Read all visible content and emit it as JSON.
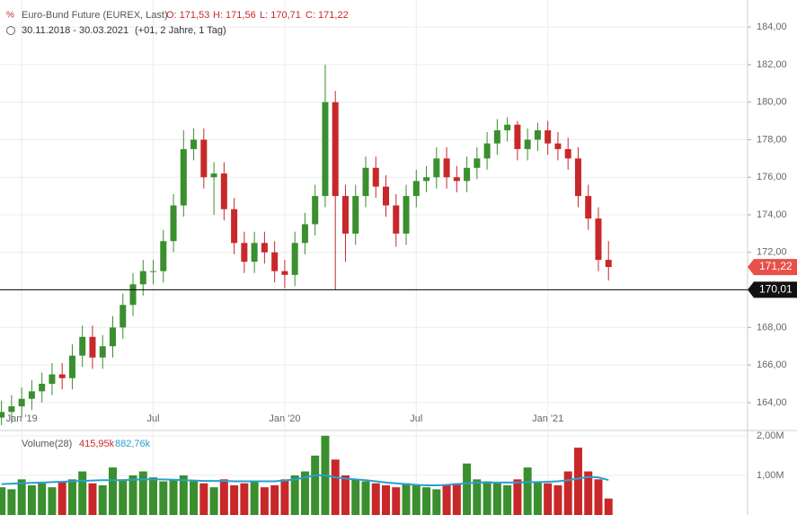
{
  "chart_data": [
    {
      "type": "candlestick",
      "title": "Euro-Bund Future (EUREX, Last)",
      "ohlc_labels": [
        "O: 171,53",
        "H: 171,56",
        "L: 170,71",
        "C: 171,22"
      ],
      "subtitle": "30.11.2018 - 30.03.2021",
      "period": "(+01, 2 Jahre, 1 Tag)",
      "categories": [
        null,
        null,
        "Jan '19",
        null,
        null,
        null,
        null,
        null,
        null,
        null,
        null,
        null,
        null,
        null,
        null,
        "Jul",
        null,
        null,
        null,
        null,
        null,
        null,
        null,
        null,
        null,
        null,
        null,
        null,
        "Jan '20",
        null,
        null,
        null,
        null,
        null,
        null,
        null,
        null,
        null,
        null,
        null,
        null,
        "Jul",
        null,
        null,
        null,
        null,
        null,
        null,
        null,
        null,
        null,
        null,
        null,
        null,
        "Jan '21",
        null,
        null,
        null,
        null,
        null,
        null
      ],
      "open": [
        163.2,
        163.5,
        163.8,
        164.2,
        164.6,
        165.0,
        165.5,
        165.3,
        166.5,
        167.5,
        166.4,
        167.0,
        168.0,
        169.2,
        170.3,
        171.0,
        171.0,
        172.6,
        174.5,
        177.5,
        178.0,
        176.0,
        176.2,
        174.3,
        172.5,
        171.5,
        172.5,
        172.0,
        171.0,
        170.8,
        172.5,
        173.5,
        175.0,
        180.0,
        175.0,
        173.0,
        175.0,
        176.5,
        175.5,
        174.5,
        173.0,
        175.0,
        175.8,
        176.0,
        177.0,
        176.0,
        175.8,
        176.5,
        177.0,
        177.8,
        178.5,
        178.8,
        177.5,
        178.0,
        178.5,
        177.8,
        177.5,
        177.0,
        175.0,
        173.8,
        171.6
      ],
      "high": [
        164.1,
        164.4,
        164.8,
        165.2,
        165.6,
        166.1,
        166.1,
        167.1,
        168.1,
        168.1,
        167.6,
        168.6,
        169.8,
        170.9,
        171.6,
        171.6,
        173.2,
        175.1,
        178.5,
        178.6,
        178.6,
        176.8,
        176.8,
        174.9,
        173.1,
        173.1,
        173.1,
        172.6,
        171.6,
        173.1,
        174.1,
        175.6,
        182.0,
        180.6,
        175.6,
        175.6,
        177.1,
        177.1,
        176.1,
        175.1,
        175.6,
        176.4,
        176.6,
        177.6,
        177.6,
        176.6,
        177.1,
        177.6,
        178.4,
        179.1,
        179.2,
        179.0,
        178.6,
        178.9,
        179.0,
        178.4,
        178.1,
        177.6,
        175.6,
        174.4,
        172.6
      ],
      "low": [
        162.8,
        162.9,
        163.2,
        163.6,
        164.0,
        164.4,
        164.7,
        164.7,
        165.9,
        165.8,
        165.8,
        166.4,
        167.4,
        168.6,
        169.7,
        170.3,
        170.4,
        172.0,
        173.9,
        176.9,
        175.4,
        174.0,
        173.7,
        171.9,
        170.9,
        170.9,
        171.4,
        170.4,
        170.1,
        170.2,
        171.9,
        172.9,
        174.4,
        170.0,
        171.5,
        172.4,
        174.4,
        174.9,
        173.9,
        172.3,
        172.4,
        174.4,
        175.2,
        175.4,
        175.4,
        175.2,
        175.2,
        175.9,
        176.4,
        177.2,
        177.9,
        176.9,
        176.9,
        177.4,
        177.2,
        176.9,
        176.4,
        174.4,
        173.2,
        171.0,
        170.5
      ],
      "close": [
        163.5,
        163.8,
        164.2,
        164.6,
        165.0,
        165.5,
        165.3,
        166.5,
        167.5,
        166.4,
        167.0,
        168.0,
        169.2,
        170.3,
        171.0,
        171.0,
        172.6,
        174.5,
        177.5,
        178.0,
        176.0,
        176.2,
        174.3,
        172.5,
        171.5,
        172.5,
        172.0,
        171.0,
        170.8,
        172.5,
        173.5,
        175.0,
        180.0,
        175.0,
        173.0,
        175.0,
        176.5,
        175.5,
        174.5,
        173.0,
        175.0,
        175.8,
        176.0,
        177.0,
        176.0,
        175.8,
        176.5,
        177.0,
        177.8,
        178.5,
        178.8,
        177.5,
        178.0,
        178.5,
        177.8,
        177.5,
        177.0,
        175.0,
        173.8,
        171.6,
        171.22
      ],
      "up_color": "#3a8f2e",
      "down_color": "#c8282a",
      "ylim": [
        162.56,
        185.2
      ],
      "yticks": [
        {
          "value": 164,
          "label": "164,00"
        },
        {
          "value": 166,
          "label": "166,00"
        },
        {
          "value": 168,
          "label": "168,00"
        },
        {
          "value": 170,
          "label": "170,00"
        },
        {
          "value": 172,
          "label": "172,00"
        },
        {
          "value": 174,
          "label": "174,00"
        },
        {
          "value": 176,
          "label": "176,00"
        },
        {
          "value": 178,
          "label": "178,00"
        },
        {
          "value": 180,
          "label": "180,00"
        },
        {
          "value": 182,
          "label": "182,00"
        },
        {
          "value": 184,
          "label": "184,00"
        }
      ],
      "last_price": {
        "value": 171.22,
        "label": "171,22"
      },
      "hline": {
        "value": 170.01,
        "label": "170,01"
      },
      "grid": true
    },
    {
      "type": "bar",
      "title": "Volume(28)",
      "legend_labels": [
        "415,95k",
        "882,76k"
      ],
      "values": [
        700000,
        650000,
        900000,
        750000,
        800000,
        700000,
        850000,
        900000,
        1100000,
        800000,
        750000,
        1200000,
        900000,
        1000000,
        1100000,
        950000,
        850000,
        900000,
        1000000,
        850000,
        800000,
        700000,
        900000,
        750000,
        800000,
        850000,
        700000,
        750000,
        900000,
        1000000,
        1100000,
        1500000,
        2000000,
        1400000,
        1000000,
        900000,
        850000,
        800000,
        750000,
        700000,
        800000,
        750000,
        700000,
        650000,
        750000,
        800000,
        1300000,
        900000,
        850000,
        800000,
        750000,
        900000,
        1200000,
        850000,
        800000,
        750000,
        1100000,
        1700000,
        1100000,
        900000,
        415950
      ],
      "ma": [
        780000,
        790000,
        800000,
        810000,
        820000,
        830000,
        840000,
        850000,
        860000,
        870000,
        880000,
        880000,
        880000,
        890000,
        900000,
        900000,
        900000,
        890000,
        880000,
        870000,
        860000,
        860000,
        860000,
        850000,
        850000,
        850000,
        850000,
        850000,
        870000,
        900000,
        950000,
        1000000,
        1000000,
        950000,
        920000,
        900000,
        880000,
        850000,
        820000,
        800000,
        780000,
        760000,
        750000,
        750000,
        760000,
        780000,
        800000,
        820000,
        820000,
        820000,
        820000,
        820000,
        830000,
        830000,
        840000,
        850000,
        880000,
        920000,
        960000,
        950000,
        882760
      ],
      "ma_color": "#2a9fd0",
      "ylim": [
        0,
        2110000
      ],
      "yticks": [
        {
          "value": 1000000,
          "label": "1,00M"
        },
        {
          "value": 2000000,
          "label": "2,00M"
        }
      ]
    }
  ]
}
